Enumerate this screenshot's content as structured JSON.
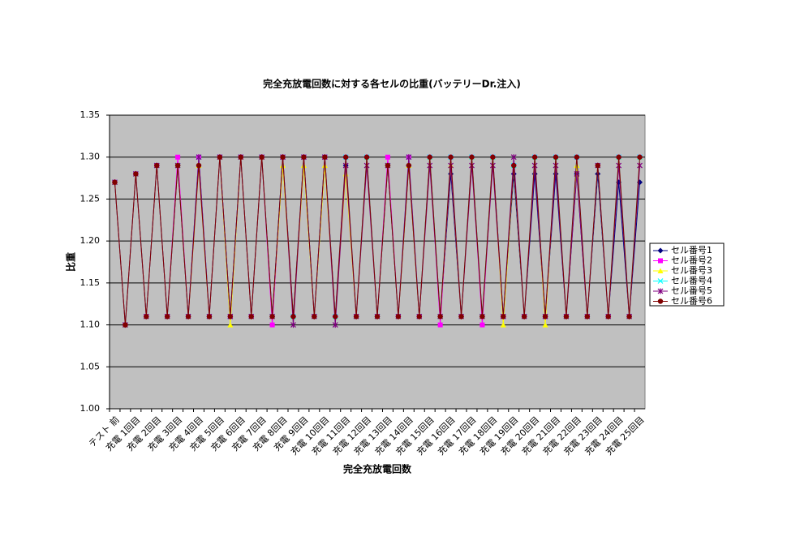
{
  "chart_data": {
    "type": "line",
    "title": "完全充放電回数に対する各セルの比重(バッテリーDr.注入)",
    "x_label": "完全充放電回数",
    "y_label": "比重",
    "categories": [
      "テスト 前",
      null,
      "充電 1回目",
      null,
      "充電 2回目",
      null,
      "充電 3回目",
      null,
      "充電 4回目",
      null,
      "充電 5回目",
      null,
      "充電 6回目",
      null,
      "充電 7回目",
      null,
      "充電 8回目",
      null,
      "充電 9回目",
      null,
      "充電 10回目",
      null,
      "充電 11回目",
      null,
      "充電 12回目",
      null,
      "充電 13回目",
      null,
      "充電 14回目",
      null,
      "充電 15回目",
      null,
      "充電 16回目",
      null,
      "充電 17回目",
      null,
      "充電 18回目",
      null,
      "充電 19回目",
      null,
      "充電 20回目",
      null,
      "充電 21回目",
      null,
      "充電 22回目",
      null,
      "充電 23回目",
      null,
      "充電 24回目",
      null,
      "充電 25回目"
    ],
    "ylim": [
      1.0,
      1.35
    ],
    "yticks": [
      {
        "value": 1.0,
        "label": "1.00"
      },
      1.05,
      {
        "value": 1.1,
        "label": "1.10"
      },
      1.15,
      {
        "value": 1.2,
        "label": "1.20"
      },
      1.25,
      {
        "value": 1.3,
        "label": "1.30"
      },
      1.35
    ],
    "grid": true,
    "legend": "right",
    "plot_background": "#c0c0c0",
    "series": [
      {
        "name": "セル番号1",
        "color": "#000080",
        "marker": "diamond",
        "values": [
          1.27,
          1.1,
          1.28,
          1.11,
          1.29,
          1.11,
          1.29,
          1.11,
          1.3,
          1.11,
          1.3,
          1.11,
          1.3,
          1.11,
          1.3,
          1.11,
          1.3,
          1.11,
          1.3,
          1.11,
          1.3,
          1.11,
          1.29,
          1.11,
          1.3,
          1.11,
          1.29,
          1.11,
          1.29,
          1.11,
          1.3,
          1.11,
          1.28,
          1.11,
          1.3,
          1.11,
          1.3,
          1.11,
          1.28,
          1.11,
          1.28,
          1.11,
          1.28,
          1.11,
          1.28,
          1.11,
          1.28,
          1.11,
          1.27,
          1.11,
          1.27
        ]
      },
      {
        "name": "セル番号2",
        "color": "#ff00ff",
        "marker": "square",
        "values": [
          1.27,
          1.1,
          1.28,
          1.11,
          1.29,
          1.11,
          1.3,
          1.11,
          1.3,
          1.11,
          1.3,
          1.11,
          1.3,
          1.11,
          1.3,
          1.1,
          1.3,
          1.11,
          1.3,
          1.11,
          1.3,
          1.11,
          1.3,
          1.11,
          1.3,
          1.11,
          1.3,
          1.11,
          1.3,
          1.11,
          1.3,
          1.1,
          1.3,
          1.11,
          1.3,
          1.1,
          1.3,
          1.11,
          1.29,
          1.11,
          1.3,
          1.11,
          1.3,
          1.11,
          1.3,
          1.11,
          1.29,
          1.11,
          1.3,
          1.11,
          1.3
        ]
      },
      {
        "name": "セル番号3",
        "color": "#ffff00",
        "marker": "triangle",
        "values": [
          1.27,
          1.1,
          1.28,
          1.11,
          1.29,
          1.11,
          1.29,
          1.11,
          1.29,
          1.11,
          1.3,
          1.1,
          1.3,
          1.11,
          1.3,
          1.11,
          1.29,
          1.11,
          1.29,
          1.11,
          1.29,
          1.11,
          1.28,
          1.11,
          1.3,
          1.11,
          1.29,
          1.11,
          1.29,
          1.11,
          1.3,
          1.11,
          1.29,
          1.11,
          1.3,
          1.11,
          1.3,
          1.1,
          1.29,
          1.11,
          1.3,
          1.1,
          1.3,
          1.11,
          1.29,
          1.11,
          1.29,
          1.11,
          1.3,
          1.11,
          1.3
        ]
      },
      {
        "name": "セル番号4",
        "color": "#00ffff",
        "marker": "x",
        "values": [
          1.27,
          1.1,
          1.28,
          1.11,
          1.29,
          1.11,
          1.29,
          1.11,
          1.3,
          1.11,
          1.3,
          1.11,
          1.3,
          1.11,
          1.3,
          1.11,
          1.3,
          1.11,
          1.3,
          1.11,
          1.3,
          1.11,
          1.3,
          1.11,
          1.3,
          1.11,
          1.29,
          1.11,
          1.3,
          1.11,
          1.3,
          1.11,
          1.3,
          1.11,
          1.3,
          1.11,
          1.3,
          1.11,
          1.29,
          1.11,
          1.3,
          1.11,
          1.3,
          1.11,
          1.3,
          1.11,
          1.29,
          1.11,
          1.3,
          1.11,
          1.3
        ]
      },
      {
        "name": "セル番号5",
        "color": "#800080",
        "marker": "asterisk",
        "values": [
          1.27,
          1.1,
          1.28,
          1.11,
          1.29,
          1.11,
          1.29,
          1.11,
          1.3,
          1.11,
          1.3,
          1.11,
          1.3,
          1.11,
          1.3,
          1.11,
          1.3,
          1.1,
          1.3,
          1.11,
          1.3,
          1.1,
          1.29,
          1.11,
          1.29,
          1.11,
          1.29,
          1.11,
          1.3,
          1.11,
          1.29,
          1.11,
          1.29,
          1.11,
          1.29,
          1.11,
          1.29,
          1.11,
          1.3,
          1.11,
          1.29,
          1.11,
          1.29,
          1.11,
          1.28,
          1.11,
          1.29,
          1.11,
          1.29,
          1.11,
          1.29
        ]
      },
      {
        "name": "セル番号6",
        "color": "#800000",
        "marker": "circle",
        "values": [
          1.27,
          1.1,
          1.28,
          1.11,
          1.29,
          1.11,
          1.29,
          1.11,
          1.29,
          1.11,
          1.3,
          1.11,
          1.3,
          1.11,
          1.3,
          1.11,
          1.3,
          1.11,
          1.3,
          1.11,
          1.3,
          1.11,
          1.3,
          1.11,
          1.3,
          1.11,
          1.29,
          1.11,
          1.29,
          1.11,
          1.3,
          1.11,
          1.3,
          1.11,
          1.3,
          1.11,
          1.3,
          1.11,
          1.29,
          1.11,
          1.3,
          1.11,
          1.3,
          1.11,
          1.3,
          1.11,
          1.29,
          1.11,
          1.3,
          1.11,
          1.3
        ]
      }
    ]
  }
}
